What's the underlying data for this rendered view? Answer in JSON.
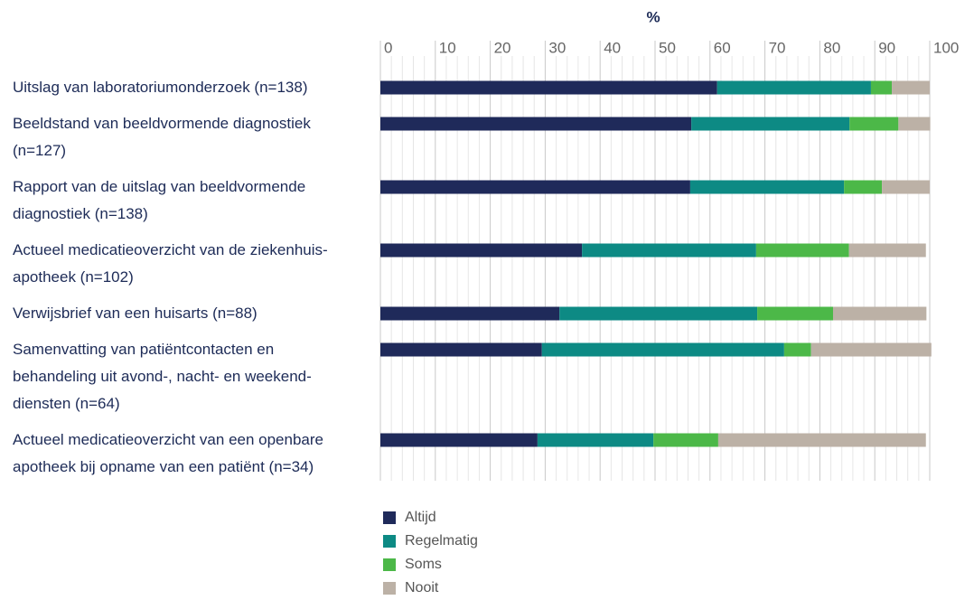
{
  "chart_data": {
    "type": "bar",
    "orientation": "horizontal",
    "stacked": true,
    "xlabel": "%",
    "categories": [
      "Uitslag van laboratoriumonderzoek (n=138)",
      "Beeldstand van beeldvormende diagnostiek (n=127)",
      "Rapport van de uitslag van beeldvormende diagnostiek (n=138)",
      "Actueel medicatieoverzicht van de ziekenhuis-apotheek (n=102)",
      "Verwijsbrief van een huisarts (n=88)",
      "Samenvatting van patiëntcontacten en behandeling uit avond-, nacht- en weekend-diensten (n=64)",
      "Actueel medicatieoverzicht van een openbare apotheek bij opname van een patiënt (n=34)"
    ],
    "series": [
      {
        "name": "Altijd",
        "color": "#1f2a5a",
        "values": [
          61.3,
          56.6,
          56.4,
          36.7,
          32.6,
          29.4,
          28.6
        ]
      },
      {
        "name": "Regelmatig",
        "color": "#0d8a84",
        "values": [
          28.0,
          28.8,
          28.0,
          31.7,
          36.0,
          44.1,
          21.1
        ]
      },
      {
        "name": "Soms",
        "color": "#4cb848",
        "values": [
          3.8,
          8.9,
          6.9,
          16.9,
          13.8,
          4.9,
          11.8
        ]
      },
      {
        "name": "Nooit",
        "color": "#bcb1a6",
        "values": [
          6.9,
          5.8,
          8.7,
          14.0,
          17.0,
          21.9,
          37.8
        ]
      }
    ],
    "xlim": [
      0,
      100
    ],
    "xticks": [
      0,
      10,
      20,
      30,
      40,
      50,
      60,
      70,
      80,
      90,
      100
    ],
    "grid": true,
    "legend": "bottom"
  }
}
